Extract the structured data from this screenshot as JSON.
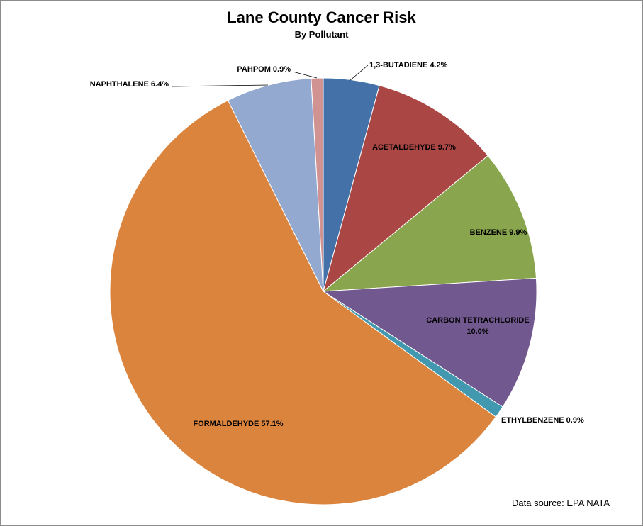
{
  "chart_data": {
    "type": "pie",
    "title": "Lane County Cancer Risk",
    "subtitle": "By Pollutant",
    "source": "Data source: EPA NATA",
    "start_angle": "12 o'clock",
    "direction": "clockwise",
    "slices": [
      {
        "name": "1,3-BUTADIENE",
        "value": 4.2,
        "label": "1,3-BUTADIENE 4.2%",
        "color": "#4472a8"
      },
      {
        "name": "ACETALDEHYDE",
        "value": 9.7,
        "label": "ACETALDEHYDE 9.7%",
        "color": "#aa4744"
      },
      {
        "name": "BENZENE",
        "value": 9.9,
        "label": "BENZENE 9.9%",
        "color": "#89a54e"
      },
      {
        "name": "CARBON TETRACHLORIDE",
        "value": 10.0,
        "label_lines": [
          "CARBON TETRACHLORIDE",
          "10.0%"
        ],
        "color": "#71588f"
      },
      {
        "name": "ETHYLBENZENE",
        "value": 0.9,
        "label": "ETHYLBENZENE 0.9%",
        "color": "#4198af"
      },
      {
        "name": "FORMALDEHYDE",
        "value": 57.1,
        "label": "FORMALDEHYDE 57.1%",
        "color": "#db843d"
      },
      {
        "name": "NAPHTHALENE",
        "value": 6.4,
        "label": "NAPHTHALENE 6.4%",
        "color": "#93a9cf"
      },
      {
        "name": "PAHPOM",
        "value": 0.9,
        "label": "PAHPOM 0.9%",
        "color": "#d19392"
      }
    ]
  }
}
